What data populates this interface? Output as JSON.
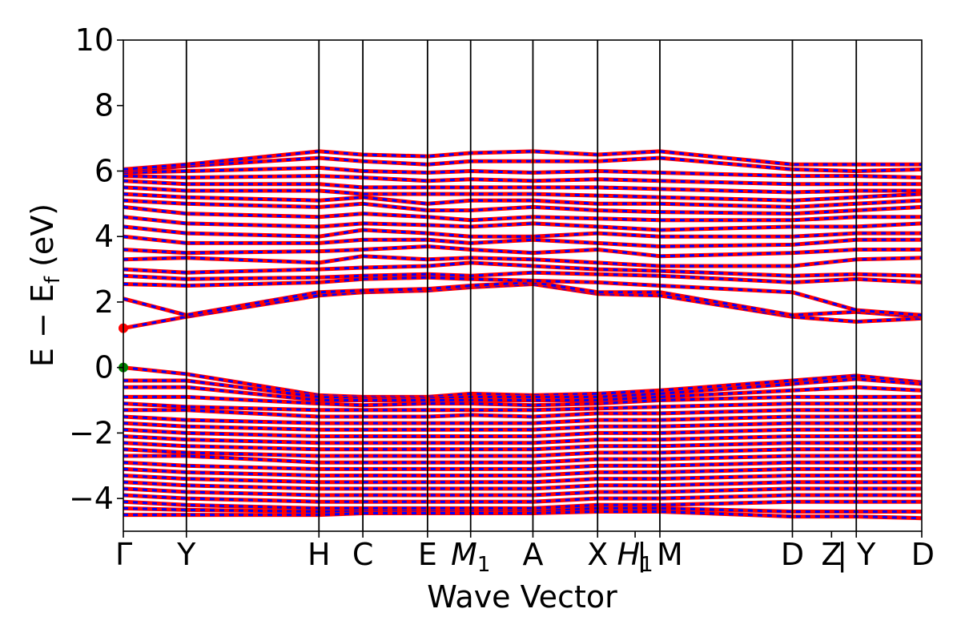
{
  "chart_data": {
    "type": "line",
    "title": "",
    "xlabel": "Wave Vector",
    "ylabel": "E − E",
    "ylabel_sub": "f",
    "ylabel_unit": " (eV)",
    "ylim": [
      -5,
      10
    ],
    "yticks": [
      -4,
      -2,
      0,
      2,
      4,
      6,
      8,
      10
    ],
    "ytick_labels": [
      "−4",
      "−2",
      "0",
      "2",
      "4",
      "6",
      "8",
      "10"
    ],
    "grid": false,
    "kpoints": [
      {
        "label": "Γ",
        "x": 0.0
      },
      {
        "label": "Y",
        "x": 0.079
      },
      {
        "label": "H",
        "x": 0.245
      },
      {
        "label": "C",
        "x": 0.3
      },
      {
        "label": "E",
        "x": 0.381
      },
      {
        "label": "M",
        "sub": "1",
        "italic": true,
        "x": 0.435
      },
      {
        "label": "A",
        "x": 0.513
      },
      {
        "label": "X",
        "x": 0.594
      },
      {
        "label": "H",
        "sub": "1",
        "italic": true,
        "x": 0.641
      },
      {
        "label": "| M",
        "x": 0.672
      },
      {
        "label": "D",
        "x": 0.838
      },
      {
        "label": "Z",
        "x": 0.887
      },
      {
        "label": "| Y",
        "x": 0.918
      },
      {
        "label": "D",
        "x": 1.0
      }
    ],
    "kpoint_lines_x": [
      0.079,
      0.245,
      0.3,
      0.381,
      0.435,
      0.513,
      0.594,
      0.672,
      0.838,
      0.918
    ],
    "series": [
      {
        "color": "#ff0000",
        "style": "solid"
      },
      {
        "color": "#0000ff",
        "style": "dashed"
      }
    ],
    "markers": [
      {
        "x": 0.0,
        "y": 1.2,
        "color": "#ff0000"
      },
      {
        "x": 0.0,
        "y": 0.0,
        "color": "#008000"
      }
    ],
    "bands": {
      "x": [
        0.0,
        0.079,
        0.245,
        0.3,
        0.381,
        0.435,
        0.513,
        0.594,
        0.672,
        0.838,
        0.918,
        1.0
      ],
      "conduction": [
        [
          1.2,
          1.55,
          2.2,
          2.3,
          2.35,
          2.45,
          2.55,
          2.25,
          2.2,
          1.55,
          1.4,
          1.5
        ],
        [
          2.1,
          1.6,
          2.3,
          2.35,
          2.4,
          2.5,
          2.6,
          2.3,
          2.3,
          1.6,
          1.7,
          1.55
        ],
        [
          2.55,
          2.5,
          2.6,
          2.7,
          2.75,
          2.7,
          2.65,
          2.6,
          2.5,
          2.3,
          1.75,
          1.6
        ],
        [
          2.8,
          2.7,
          2.75,
          2.8,
          2.85,
          2.8,
          2.9,
          2.85,
          2.8,
          2.6,
          2.7,
          2.6
        ],
        [
          3.0,
          2.9,
          3.0,
          3.05,
          3.1,
          3.2,
          3.1,
          3.0,
          2.95,
          2.8,
          2.85,
          2.8
        ],
        [
          3.3,
          3.35,
          3.2,
          3.4,
          3.3,
          3.35,
          3.3,
          3.2,
          3.1,
          3.1,
          3.3,
          3.35
        ],
        [
          3.6,
          3.5,
          3.55,
          3.6,
          3.7,
          3.6,
          3.5,
          3.6,
          3.4,
          3.5,
          3.6,
          3.6
        ],
        [
          4.0,
          3.8,
          3.8,
          3.9,
          3.9,
          3.8,
          3.9,
          3.8,
          3.7,
          3.75,
          3.9,
          3.9
        ],
        [
          4.3,
          4.1,
          4.0,
          4.2,
          4.1,
          4.0,
          4.0,
          4.1,
          4.0,
          4.0,
          4.1,
          4.1
        ],
        [
          4.6,
          4.4,
          4.3,
          4.4,
          4.35,
          4.3,
          4.4,
          4.3,
          4.2,
          4.3,
          4.3,
          4.4
        ],
        [
          4.9,
          4.7,
          4.6,
          4.7,
          4.6,
          4.5,
          4.6,
          4.55,
          4.5,
          4.5,
          4.6,
          4.6
        ],
        [
          5.1,
          5.0,
          4.9,
          5.0,
          4.8,
          4.8,
          4.9,
          4.8,
          4.75,
          4.7,
          4.8,
          4.9
        ],
        [
          5.3,
          5.2,
          5.1,
          5.2,
          5.0,
          5.1,
          5.1,
          5.0,
          5.0,
          4.9,
          5.0,
          5.1
        ],
        [
          5.5,
          5.4,
          5.4,
          5.3,
          5.3,
          5.3,
          5.3,
          5.25,
          5.2,
          5.1,
          5.2,
          5.3
        ],
        [
          5.7,
          5.6,
          5.6,
          5.5,
          5.5,
          5.5,
          5.5,
          5.5,
          5.45,
          5.35,
          5.4,
          5.4
        ],
        [
          5.85,
          5.8,
          5.85,
          5.8,
          5.7,
          5.75,
          5.7,
          5.75,
          5.7,
          5.6,
          5.6,
          5.6
        ],
        [
          5.95,
          6.0,
          6.1,
          6.0,
          5.95,
          6.0,
          5.95,
          6.0,
          5.95,
          5.85,
          5.85,
          5.8
        ],
        [
          6.0,
          6.15,
          6.4,
          6.3,
          6.2,
          6.3,
          6.3,
          6.3,
          6.4,
          6.05,
          6.0,
          6.05
        ],
        [
          6.05,
          6.2,
          6.6,
          6.5,
          6.45,
          6.55,
          6.6,
          6.5,
          6.6,
          6.2,
          6.2,
          6.2
        ]
      ],
      "valence": [
        [
          0.0,
          -0.2,
          -0.85,
          -0.9,
          -0.9,
          -0.8,
          -0.85,
          -0.8,
          -0.7,
          -0.4,
          -0.25,
          -0.45
        ],
        [
          -0.4,
          -0.4,
          -0.9,
          -0.95,
          -0.95,
          -0.9,
          -0.9,
          -0.9,
          -0.8,
          -0.5,
          -0.35,
          -0.5
        ],
        [
          -0.6,
          -0.6,
          -1.0,
          -1.0,
          -1.0,
          -1.0,
          -1.0,
          -1.0,
          -0.9,
          -0.7,
          -0.6,
          -0.7
        ],
        [
          -0.9,
          -0.9,
          -1.1,
          -1.15,
          -1.1,
          -1.1,
          -1.15,
          -1.1,
          -1.0,
          -0.9,
          -0.9,
          -0.9
        ],
        [
          -1.1,
          -1.2,
          -1.3,
          -1.3,
          -1.3,
          -1.3,
          -1.3,
          -1.25,
          -1.2,
          -1.1,
          -1.1,
          -1.1
        ],
        [
          -1.3,
          -1.3,
          -1.5,
          -1.5,
          -1.5,
          -1.45,
          -1.5,
          -1.4,
          -1.4,
          -1.3,
          -1.3,
          -1.3
        ],
        [
          -1.5,
          -1.6,
          -1.7,
          -1.7,
          -1.7,
          -1.7,
          -1.7,
          -1.6,
          -1.6,
          -1.5,
          -1.5,
          -1.5
        ],
        [
          -1.7,
          -1.8,
          -1.9,
          -1.9,
          -1.9,
          -1.9,
          -1.9,
          -1.8,
          -1.8,
          -1.7,
          -1.7,
          -1.7
        ],
        [
          -1.9,
          -2.0,
          -2.1,
          -2.1,
          -2.1,
          -2.1,
          -2.1,
          -2.0,
          -2.0,
          -1.9,
          -1.9,
          -1.9
        ],
        [
          -2.1,
          -2.2,
          -2.3,
          -2.3,
          -2.3,
          -2.3,
          -2.3,
          -2.2,
          -2.2,
          -2.1,
          -2.1,
          -2.1
        ],
        [
          -2.3,
          -2.4,
          -2.5,
          -2.5,
          -2.5,
          -2.5,
          -2.5,
          -2.4,
          -2.4,
          -2.3,
          -2.3,
          -2.3
        ],
        [
          -2.5,
          -2.6,
          -2.7,
          -2.7,
          -2.7,
          -2.7,
          -2.7,
          -2.6,
          -2.6,
          -2.5,
          -2.5,
          -2.5
        ],
        [
          -2.7,
          -2.7,
          -2.9,
          -2.9,
          -2.9,
          -2.9,
          -2.9,
          -2.8,
          -2.8,
          -2.7,
          -2.7,
          -2.7
        ],
        [
          -2.9,
          -3.0,
          -3.1,
          -3.1,
          -3.1,
          -3.1,
          -3.1,
          -3.0,
          -3.0,
          -2.9,
          -2.9,
          -2.9
        ],
        [
          -3.1,
          -3.2,
          -3.3,
          -3.3,
          -3.3,
          -3.3,
          -3.3,
          -3.2,
          -3.2,
          -3.1,
          -3.1,
          -3.1
        ],
        [
          -3.3,
          -3.4,
          -3.5,
          -3.5,
          -3.5,
          -3.5,
          -3.5,
          -3.4,
          -3.4,
          -3.3,
          -3.3,
          -3.3
        ],
        [
          -3.5,
          -3.6,
          -3.7,
          -3.7,
          -3.7,
          -3.7,
          -3.7,
          -3.6,
          -3.6,
          -3.5,
          -3.5,
          -3.5
        ],
        [
          -3.7,
          -3.8,
          -3.9,
          -3.9,
          -3.9,
          -3.9,
          -3.9,
          -3.8,
          -3.8,
          -3.7,
          -3.7,
          -3.7
        ],
        [
          -3.9,
          -4.0,
          -4.1,
          -4.1,
          -4.1,
          -4.1,
          -4.1,
          -4.0,
          -4.0,
          -3.9,
          -3.9,
          -3.9
        ],
        [
          -4.1,
          -4.2,
          -4.3,
          -4.3,
          -4.3,
          -4.3,
          -4.3,
          -4.2,
          -4.2,
          -4.1,
          -4.1,
          -4.1
        ],
        [
          -4.3,
          -4.35,
          -4.4,
          -4.4,
          -4.4,
          -4.4,
          -4.4,
          -4.3,
          -4.3,
          -4.4,
          -4.4,
          -4.4
        ],
        [
          -4.5,
          -4.5,
          -4.5,
          -4.45,
          -4.45,
          -4.45,
          -4.45,
          -4.4,
          -4.4,
          -4.55,
          -4.55,
          -4.6
        ]
      ]
    }
  }
}
